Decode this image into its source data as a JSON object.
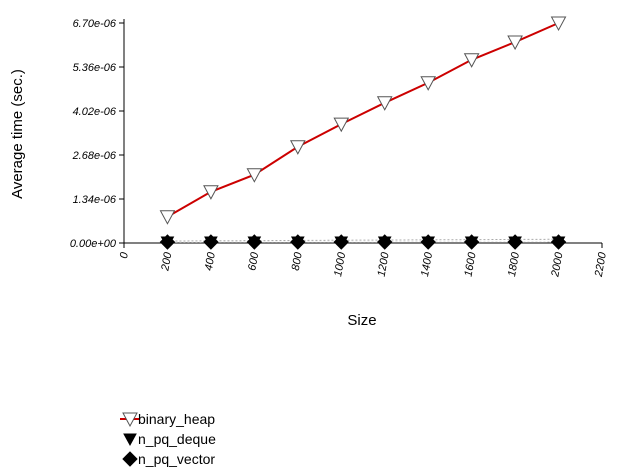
{
  "chart_data": {
    "type": "line",
    "title": "",
    "xlabel": "Size",
    "ylabel": "Average time (sec.)",
    "xlim": [
      0,
      2200
    ],
    "ylim": [
      0,
      6.7e-06
    ],
    "x_ticks": [
      {
        "value": 0,
        "label": "0"
      },
      {
        "value": 200,
        "label": "200"
      },
      {
        "value": 400,
        "label": "400"
      },
      {
        "value": 600,
        "label": "600"
      },
      {
        "value": 800,
        "label": "800"
      },
      {
        "value": 1000,
        "label": "1000"
      },
      {
        "value": 1200,
        "label": "1200"
      },
      {
        "value": 1400,
        "label": "1400"
      },
      {
        "value": 1600,
        "label": "1600"
      },
      {
        "value": 1800,
        "label": "1800"
      },
      {
        "value": 2000,
        "label": "2000"
      },
      {
        "value": 2200,
        "label": "2200"
      }
    ],
    "y_ticks": [
      {
        "value": 0,
        "label": "0.00e+00"
      },
      {
        "value": 1.34e-06,
        "label": "1.34e-06"
      },
      {
        "value": 2.68e-06,
        "label": "2.68e-06"
      },
      {
        "value": 4.02e-06,
        "label": "4.02e-06"
      },
      {
        "value": 5.36e-06,
        "label": "5.36e-06"
      },
      {
        "value": 6.7e-06,
        "label": "6.70e-06"
      }
    ],
    "grid": false,
    "legend_position": "bottom-left",
    "x": [
      200,
      400,
      600,
      800,
      1000,
      1200,
      1400,
      1600,
      1800,
      2000
    ],
    "series": [
      {
        "name": "binary_heap",
        "marker": "triangle-down-open",
        "color": "#cc0000",
        "values": [
          8e-07,
          1.56e-06,
          2.08e-06,
          2.93e-06,
          3.62e-06,
          4.27e-06,
          4.88e-06,
          5.58e-06,
          6.12e-06,
          6.7e-06
        ]
      },
      {
        "name": "n_pq_deque",
        "marker": "triangle-down-filled",
        "color": "#aaaaaa",
        "values": [
          1.5e-08,
          1.7e-08,
          1.8e-08,
          1.9e-08,
          2e-08,
          2.1e-08,
          2.2e-08,
          2.3e-08,
          2.4e-08,
          2.5e-08
        ]
      },
      {
        "name": "n_pq_vector",
        "marker": "diamond-filled",
        "color": "#aaaaaa",
        "values": [
          6e-08,
          6.6e-08,
          7.2e-08,
          7.8e-08,
          8.4e-08,
          9e-08,
          9.6e-08,
          1.02e-07,
          1.08e-07,
          1.14e-07
        ]
      }
    ]
  }
}
